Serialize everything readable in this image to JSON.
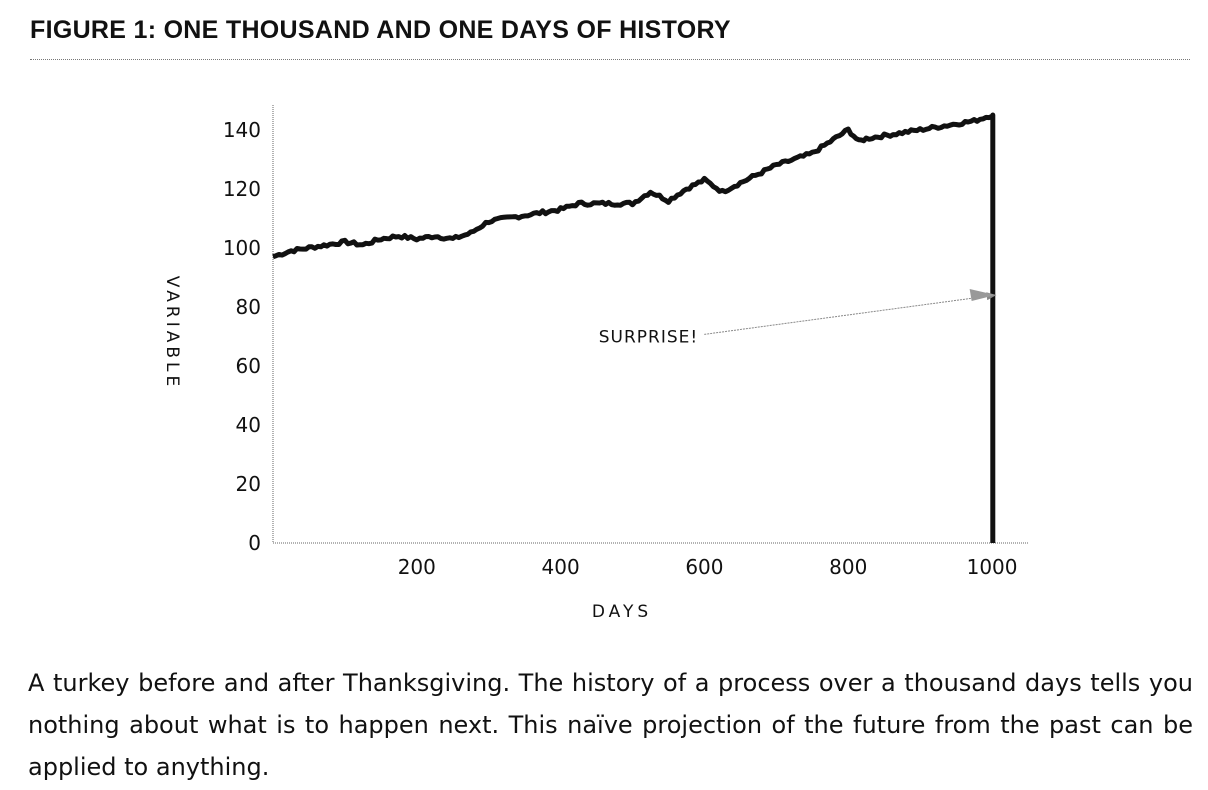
{
  "figure_title": "FIGURE 1: ONE THOUSAND AND ONE DAYS OF HISTORY",
  "caption": "A turkey before and after Thanksgiving. The history of a process over a thousand days tells you nothing about what is to happen next. This naïve projection of the future from the past can be applied to anything.",
  "chart_data": {
    "type": "line",
    "title": "FIGURE 1: ONE THOUSAND AND ONE DAYS OF HISTORY",
    "xlabel": "DAYS",
    "ylabel": "VARIABLE",
    "xlim": [
      0,
      1050
    ],
    "ylim": [
      0,
      145
    ],
    "x_ticks": [
      200,
      400,
      600,
      800,
      1000
    ],
    "y_ticks": [
      0,
      20,
      40,
      60,
      80,
      100,
      120,
      140
    ],
    "grid": false,
    "annotations": [
      {
        "text": "SURPRISE!",
        "x": 460,
        "y": 70,
        "arrow_to_x": 1005,
        "arrow_to_y": 84
      }
    ],
    "series": [
      {
        "x": [
          0,
          25,
          50,
          75,
          100,
          125,
          150,
          175,
          200,
          225,
          250,
          275,
          300,
          325,
          350,
          375,
          400,
          425,
          450,
          475,
          500,
          525,
          550,
          575,
          600,
          625,
          650,
          675,
          700,
          725,
          750,
          775,
          800,
          815,
          825,
          850,
          875,
          900,
          925,
          950,
          975,
          1000,
          1001,
          1001
        ],
        "y": [
          97,
          99,
          100,
          101,
          102,
          101,
          103,
          104,
          103,
          104,
          103,
          105,
          109,
          110,
          111,
          112,
          113,
          115,
          115,
          115,
          115,
          119,
          116,
          120,
          123,
          119,
          122,
          125,
          128,
          130,
          132,
          136,
          140,
          136,
          137,
          138,
          139,
          140,
          141,
          142,
          143,
          145,
          145,
          0
        ]
      }
    ]
  }
}
